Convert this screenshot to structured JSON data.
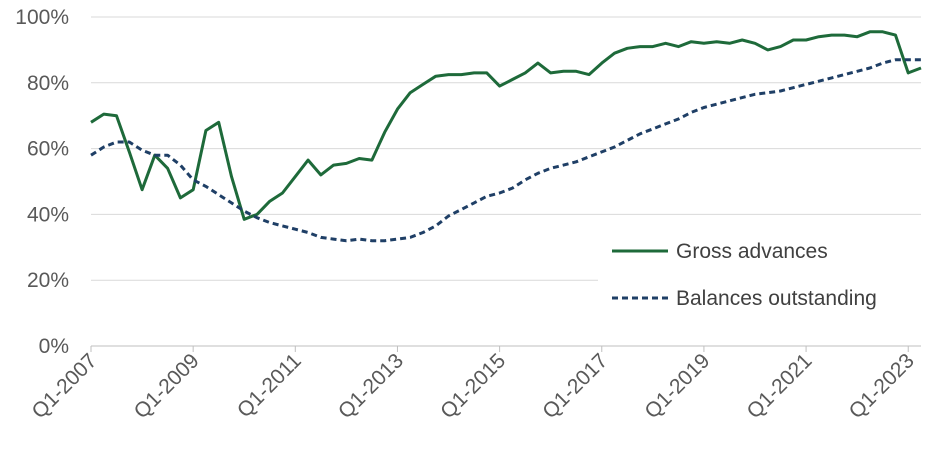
{
  "chart_data": {
    "type": "line",
    "title": "",
    "xlabel": "",
    "ylabel": "",
    "ylim": [
      0,
      100
    ],
    "y_ticks": [
      "0%",
      "20%",
      "40%",
      "60%",
      "80%",
      "100%"
    ],
    "x_ticks": [
      "Q1-2007",
      "Q1-2009",
      "Q1-2011",
      "Q1-2013",
      "Q1-2015",
      "Q1-2017",
      "Q1-2019",
      "Q1-2021",
      "Q1-2023"
    ],
    "grid": true,
    "legend_position": "bottom-right",
    "series": [
      {
        "name": "Gross advances",
        "color": "#1e6a3a",
        "style": "solid",
        "values": [
          68,
          70.5,
          70,
          59,
          47.5,
          58,
          54,
          45,
          47.5,
          65.5,
          68,
          51.5,
          38.5,
          40,
          44,
          46.5,
          51.5,
          56.5,
          52,
          55,
          55.5,
          57,
          56.5,
          65,
          72,
          77,
          79.5,
          82,
          82.5,
          82.5,
          83,
          83,
          79,
          81,
          83,
          86,
          83,
          83.5,
          83.5,
          82.5,
          86,
          89,
          90.5,
          91,
          91,
          92,
          91,
          92.5,
          92,
          92.5,
          92,
          93,
          92,
          90,
          91,
          93,
          93,
          94,
          94.5,
          94.5,
          94,
          95.5,
          95.5,
          94.5,
          83,
          84.5
        ]
      },
      {
        "name": "Balances outstanding",
        "color": "#1f3f66",
        "style": "dashed",
        "values": [
          58,
          60.5,
          62,
          62,
          59.5,
          58,
          58,
          55,
          50.5,
          48.5,
          46,
          43.5,
          41,
          39,
          37.5,
          36.5,
          35.5,
          34.5,
          33,
          32.5,
          32,
          32.5,
          32,
          32,
          32.5,
          33,
          34.5,
          36.5,
          39.5,
          41.5,
          43.5,
          45.5,
          46.5,
          48,
          50.5,
          52.5,
          54,
          55,
          56,
          57.5,
          59,
          60.5,
          62.5,
          64.5,
          66,
          67.5,
          69,
          71,
          72.5,
          73.5,
          74.5,
          75.5,
          76.5,
          77,
          77.5,
          78.5,
          79.5,
          80.5,
          81.5,
          82.5,
          83.5,
          84.5,
          86,
          87,
          87,
          87
        ]
      }
    ]
  }
}
